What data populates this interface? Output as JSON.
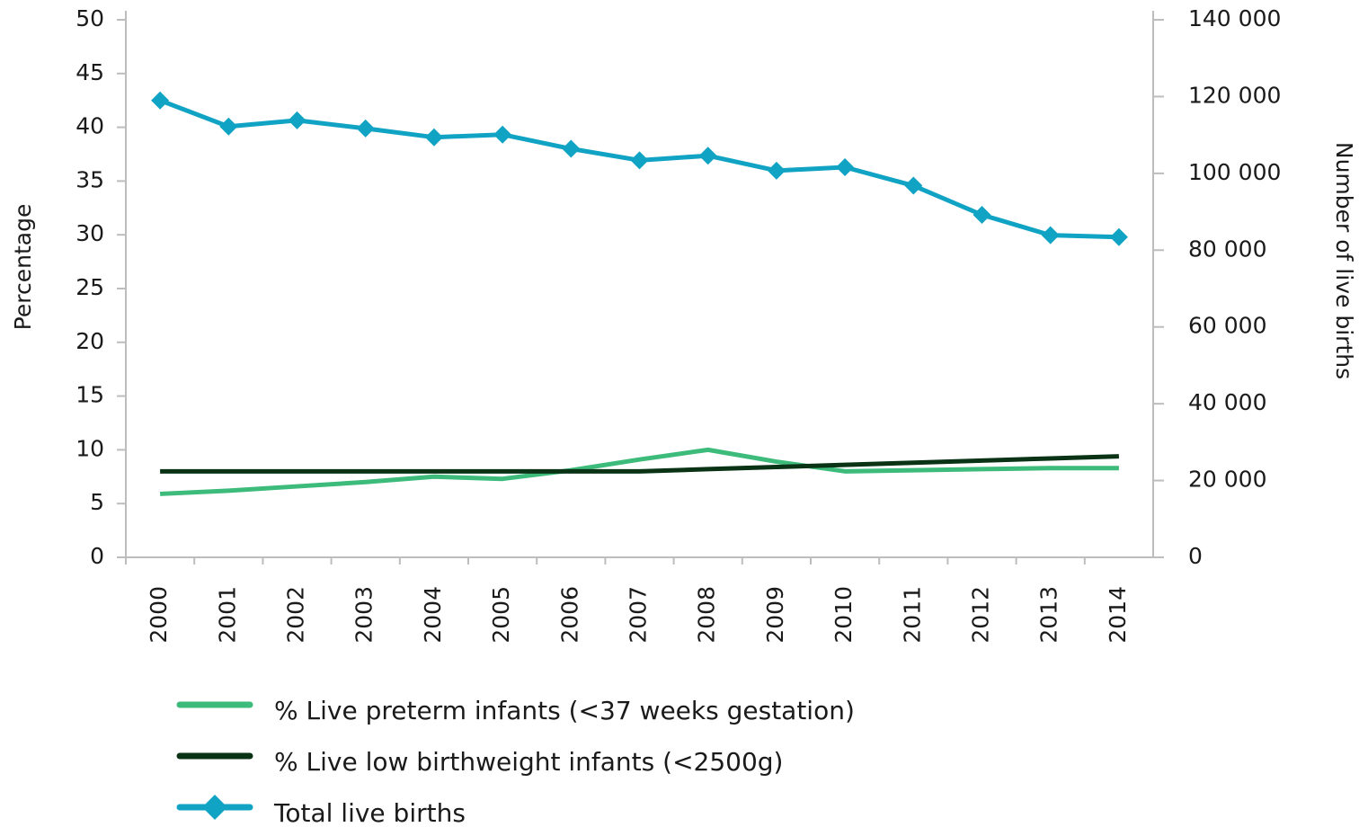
{
  "chart_data": {
    "type": "line",
    "categories": [
      "2000",
      "2001",
      "2002",
      "2003",
      "2004",
      "2005",
      "2006",
      "2007",
      "2008",
      "2009",
      "2010",
      "2011",
      "2012",
      "2013",
      "2014"
    ],
    "series": [
      {
        "name": "% Live preterm infants (<37 weeks gestation)",
        "color": "#3dbb7a",
        "values": [
          5.9,
          6.2,
          6.6,
          7.0,
          7.5,
          7.3,
          8.1,
          9.1,
          10.0,
          8.9,
          8.0,
          8.1,
          8.2,
          8.3,
          8.3
        ]
      },
      {
        "name": "% Live low birthweight infants (<2500g)",
        "color": "#0a3316",
        "values": [
          8.0,
          8.0,
          8.0,
          8.0,
          8.0,
          8.0,
          8.0,
          8.0,
          8.2,
          8.4,
          8.6,
          8.8,
          9.0,
          9.2,
          9.4
        ]
      },
      {
        "name": "Total live births",
        "color": "#10a3c4",
        "axis": "y2",
        "marker": "diamond",
        "values": [
          119000,
          112200,
          113800,
          111700,
          109400,
          110100,
          106400,
          103400,
          104600,
          100700,
          101600,
          96800,
          89200,
          83900,
          83400
        ]
      }
    ],
    "ylabel": "Percentage",
    "y2label": "Number of live births",
    "ylim": [
      0,
      50
    ],
    "yticks": [
      0,
      5,
      10,
      15,
      20,
      25,
      30,
      35,
      40,
      45,
      50
    ],
    "y2lim": [
      0,
      140000
    ],
    "y2ticks": [
      0,
      {
        "value": 20000,
        "label": "20 000"
      },
      {
        "value": 40000,
        "label": "40 000"
      },
      {
        "value": 60000,
        "label": "60 000"
      },
      {
        "value": 80000,
        "label": "80 000"
      },
      {
        "value": 100000,
        "label": "100 000"
      },
      {
        "value": 120000,
        "label": "120 000"
      },
      {
        "value": 140000,
        "label": "140 000"
      }
    ],
    "legend": "bottom",
    "grid": false
  }
}
